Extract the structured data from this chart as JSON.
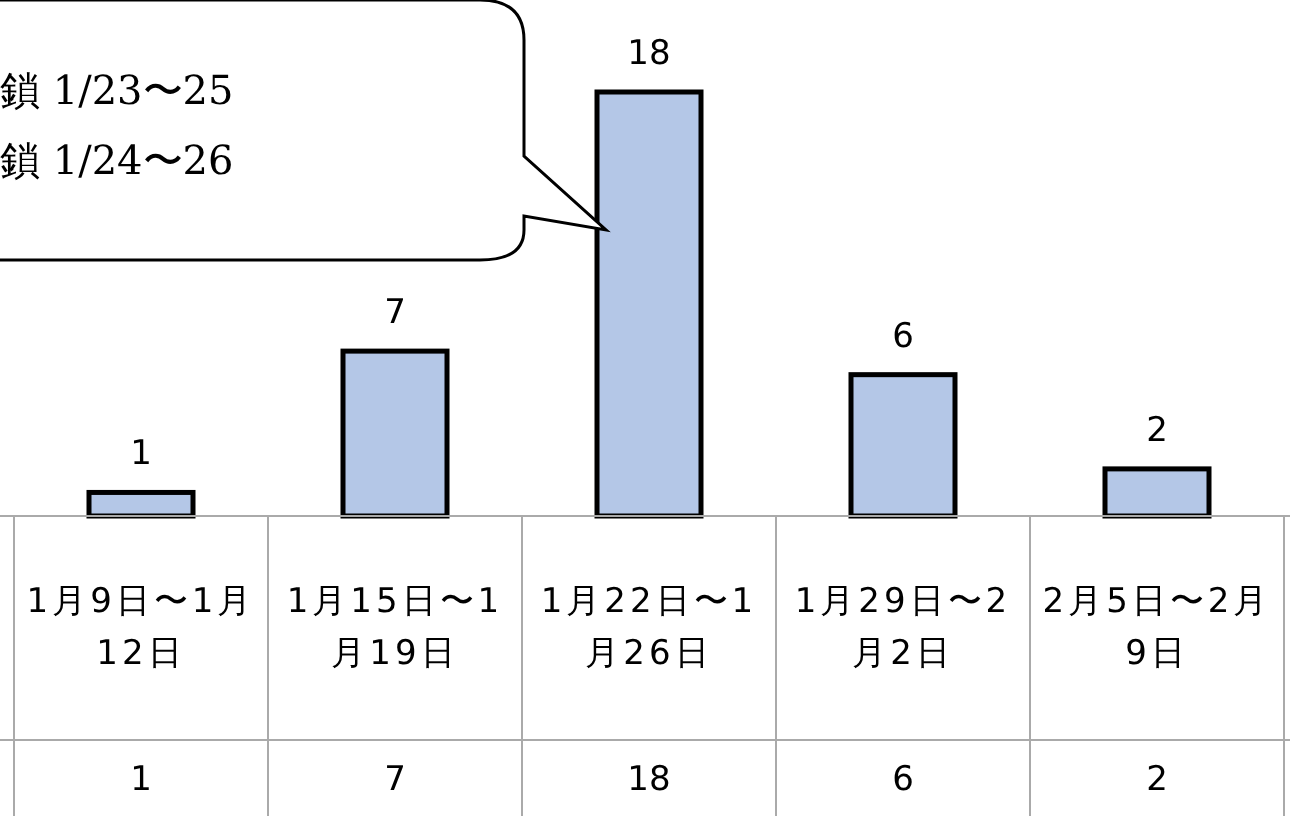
{
  "chart_data": {
    "type": "bar",
    "categories": [
      "1月9日〜1月12日",
      "1月15日〜1月19日",
      "1月22日〜1月26日",
      "1月29日〜2月2日",
      "2月5日〜2月9日"
    ],
    "values": [
      1,
      7,
      18,
      6,
      2
    ],
    "color": "#b4c7e7",
    "data_labels": true,
    "value_labels": [
      "1",
      "7",
      "18",
      "6",
      "2"
    ],
    "annotations": [
      "鎖 1/23〜25",
      "鎖 1/24〜26",
      "1",
      "7",
      "18",
      "6",
      "2"
    ]
  }
}
